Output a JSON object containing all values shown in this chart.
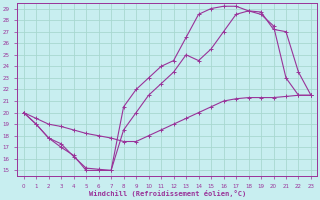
{
  "xlabel": "Windchill (Refroidissement éolien,°C)",
  "bg_color": "#c8eef0",
  "grid_color": "#a8d8d0",
  "line_color": "#993399",
  "xlim_min": -0.5,
  "xlim_max": 23.5,
  "ylim_min": 14.5,
  "ylim_max": 29.5,
  "xticks": [
    0,
    1,
    2,
    3,
    4,
    5,
    6,
    7,
    8,
    9,
    10,
    11,
    12,
    13,
    14,
    15,
    16,
    17,
    18,
    19,
    20,
    21,
    22,
    23
  ],
  "yticks": [
    15,
    16,
    17,
    18,
    19,
    20,
    21,
    22,
    23,
    24,
    25,
    26,
    27,
    28,
    29
  ],
  "curve1_x": [
    0,
    1,
    2,
    3,
    4,
    5,
    6,
    7,
    8,
    9,
    10,
    11,
    12,
    13,
    14,
    15,
    16,
    17,
    18,
    19,
    20,
    21,
    22,
    23
  ],
  "curve1_y": [
    20,
    19,
    17.8,
    17,
    16.3,
    15,
    15,
    15,
    20.5,
    22,
    23,
    24,
    24.5,
    26.5,
    28.5,
    29,
    29.2,
    29.2,
    28.8,
    28.5,
    27.5,
    23,
    21.5,
    21.5
  ],
  "curve2_x": [
    0,
    1,
    2,
    3,
    4,
    5,
    6,
    7,
    8,
    9,
    10,
    11,
    12,
    13,
    14,
    15,
    16,
    17,
    18,
    19,
    20,
    21,
    22,
    23
  ],
  "curve2_y": [
    20,
    19.5,
    19,
    18.8,
    18.5,
    18.2,
    18,
    17.8,
    17.5,
    17.5,
    18,
    18.5,
    19,
    19.5,
    20,
    20.5,
    21,
    21.2,
    21.3,
    21.3,
    21.3,
    21.4,
    21.5,
    21.5
  ],
  "curve3_x": [
    0,
    1,
    2,
    3,
    4,
    5,
    6,
    7,
    8,
    9,
    10,
    11,
    12,
    13,
    14,
    15,
    16,
    17,
    18,
    19,
    20,
    21,
    22,
    23
  ],
  "curve3_y": [
    20,
    19,
    17.8,
    17.3,
    16.2,
    15.2,
    15.1,
    15,
    18.5,
    20,
    21.5,
    22.5,
    23.5,
    25,
    24.5,
    25.5,
    27,
    28.5,
    28.8,
    28.7,
    27.2,
    27,
    23.5,
    21.5
  ]
}
